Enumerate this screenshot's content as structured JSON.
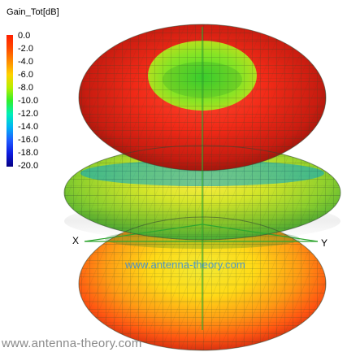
{
  "legend": {
    "title": "Gain_Tot[dB]",
    "ticks": [
      "0.0",
      "-2.0",
      "-4.0",
      "-6.0",
      "-8.0",
      "-10.0",
      "-12.0",
      "-14.0",
      "-16.0",
      "-18.0",
      "-20.0"
    ]
  },
  "axes": {
    "x_label": "X",
    "y_label": "Y"
  },
  "watermarks": {
    "center": "www.antenna-theory.com",
    "bottom": "www.antenna-theory.com"
  },
  "colors": {
    "background": "#ffffff",
    "legend_top": "#ff1f00",
    "legend_bottom": "#060083",
    "watermark_center": "#1682ff",
    "watermark_bottom": "#8a8a8a"
  }
}
